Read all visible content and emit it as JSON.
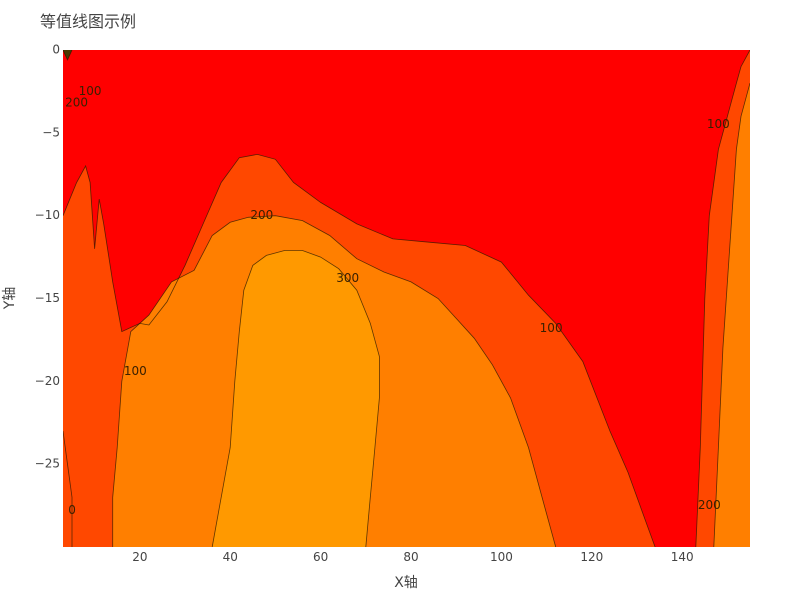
{
  "chart_data": {
    "type": "contour",
    "title": "等值线图示例",
    "xlabel": "X轴",
    "ylabel": "Y轴",
    "xlim": [
      3,
      155
    ],
    "ylim": [
      -30,
      0
    ],
    "x_ticks": [
      20,
      40,
      60,
      80,
      100,
      120,
      140
    ],
    "y_ticks": [
      0,
      -5,
      -10,
      -15,
      -20,
      -25
    ],
    "contour_levels": [
      0,
      100,
      200,
      300
    ],
    "level_colors": {
      "below_0": "#4a3a00",
      "0_to_100": "#ff0000",
      "100_to_200": "#ff4800",
      "200_to_300": "#ff7f00",
      "above_300": "#ff9900"
    },
    "contour_labels": [
      {
        "text": "100",
        "x": 9,
        "y": -2.5,
        "level": 100
      },
      {
        "text": "200",
        "x": 6,
        "y": -3.2,
        "level": 200
      },
      {
        "text": "200",
        "x": 47,
        "y": -10.0,
        "level": 200
      },
      {
        "text": "300",
        "x": 66,
        "y": -13.8,
        "level": 300
      },
      {
        "text": "100",
        "x": 111,
        "y": -16.8,
        "level": 100
      },
      {
        "text": "100",
        "x": 19,
        "y": -19.4,
        "level": 100
      },
      {
        "text": "100",
        "x": 148,
        "y": -4.5,
        "level": 100
      },
      {
        "text": "200",
        "x": 146,
        "y": -27.5,
        "level": 200
      },
      {
        "text": "0",
        "x": 5,
        "y": -27.8,
        "level": 0
      }
    ],
    "contours": {
      "level_100_main": [
        [
          3,
          -10
        ],
        [
          6,
          -8
        ],
        [
          8,
          -7
        ],
        [
          9,
          -8
        ],
        [
          10,
          -12
        ],
        [
          11,
          -9
        ],
        [
          12,
          -10.5
        ],
        [
          14,
          -14
        ],
        [
          16,
          -17
        ],
        [
          20,
          -16.5
        ],
        [
          22,
          -16.6
        ],
        [
          26,
          -15.2
        ],
        [
          30,
          -13
        ],
        [
          34,
          -10.5
        ],
        [
          38,
          -8
        ],
        [
          42,
          -6.5
        ],
        [
          46,
          -6.3
        ],
        [
          50,
          -6.6
        ],
        [
          54,
          -8
        ],
        [
          60,
          -9.2
        ],
        [
          68,
          -10.5
        ],
        [
          76,
          -11.4
        ],
        [
          84,
          -11.6
        ],
        [
          92,
          -11.8
        ],
        [
          100,
          -12.8
        ],
        [
          106,
          -14.8
        ],
        [
          112,
          -16.5
        ],
        [
          118,
          -18.8
        ],
        [
          124,
          -23
        ],
        [
          128,
          -25.5
        ],
        [
          132,
          -28.5
        ],
        [
          134,
          -30
        ]
      ],
      "level_100_right": [
        [
          143,
          -30
        ],
        [
          144,
          -24
        ],
        [
          145,
          -15
        ],
        [
          146,
          -10
        ],
        [
          148,
          -6
        ],
        [
          150,
          -4
        ],
        [
          151,
          -3
        ],
        [
          152,
          -2
        ],
        [
          153,
          -1
        ],
        [
          154,
          -0.5
        ],
        [
          155,
          0
        ]
      ],
      "level_200_main": [
        [
          14,
          -30
        ],
        [
          14,
          -27
        ],
        [
          15,
          -24
        ],
        [
          16,
          -20
        ],
        [
          18,
          -17
        ],
        [
          22,
          -16
        ],
        [
          27,
          -14
        ],
        [
          32,
          -13.3
        ],
        [
          36,
          -11.2
        ],
        [
          40,
          -10.4
        ],
        [
          44,
          -10.1
        ],
        [
          50,
          -10
        ],
        [
          56,
          -10.3
        ],
        [
          62,
          -11.2
        ],
        [
          68,
          -12.6
        ],
        [
          74,
          -13.4
        ],
        [
          80,
          -14
        ],
        [
          86,
          -15
        ],
        [
          90,
          -16.2
        ],
        [
          94,
          -17.4
        ],
        [
          98,
          -19
        ],
        [
          102,
          -21
        ],
        [
          106,
          -24
        ],
        [
          110,
          -28
        ],
        [
          112,
          -30
        ]
      ],
      "level_200_right": [
        [
          147,
          -30
        ],
        [
          148,
          -24
        ],
        [
          149,
          -18
        ],
        [
          150,
          -14
        ],
        [
          151,
          -10
        ],
        [
          152,
          -6
        ],
        [
          153,
          -4
        ],
        [
          154,
          -3
        ],
        [
          155,
          -2
        ]
      ],
      "level_300_main": [
        [
          36,
          -30
        ],
        [
          38,
          -27
        ],
        [
          40,
          -24
        ],
        [
          41,
          -20
        ],
        [
          42,
          -17
        ],
        [
          43,
          -14.5
        ],
        [
          45,
          -13
        ],
        [
          48,
          -12.4
        ],
        [
          52,
          -12.1
        ],
        [
          56,
          -12.1
        ],
        [
          60,
          -12.5
        ],
        [
          64,
          -13.2
        ],
        [
          68,
          -14.5
        ],
        [
          71,
          -16.5
        ],
        [
          73,
          -18.5
        ],
        [
          73,
          -21
        ],
        [
          72,
          -24
        ],
        [
          71,
          -27
        ],
        [
          70,
          -30
        ]
      ],
      "level_0_left": [
        [
          3,
          -23
        ],
        [
          4,
          -25
        ],
        [
          5,
          -27
        ],
        [
          5,
          -30
        ]
      ],
      "level_0_tl": [
        [
          3,
          0
        ],
        [
          4,
          -0.6
        ],
        [
          5,
          0
        ]
      ]
    }
  }
}
